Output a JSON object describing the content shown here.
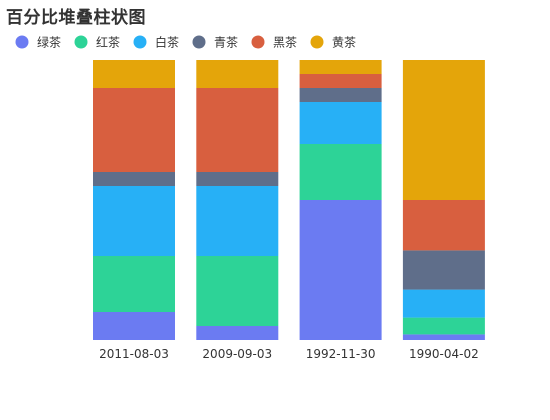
{
  "chart_data": {
    "type": "bar",
    "stacked": "percent",
    "title": "百分比堆叠柱状图",
    "categories": [
      "2011-08-03",
      "2009-09-03",
      "1992-11-30",
      "1990-04-02"
    ],
    "series": [
      {
        "name": "绿茶",
        "color": "#6b7bf2",
        "values": [
          10,
          5,
          50,
          2
        ]
      },
      {
        "name": "红茶",
        "color": "#2dd397",
        "values": [
          20,
          25,
          20,
          6
        ]
      },
      {
        "name": "白茶",
        "color": "#27b0f6",
        "values": [
          25,
          25,
          15,
          10
        ]
      },
      {
        "name": "青茶",
        "color": "#5f6e8a",
        "values": [
          5,
          5,
          5,
          14
        ]
      },
      {
        "name": "黑茶",
        "color": "#d85f3f",
        "values": [
          30,
          30,
          5,
          18
        ]
      },
      {
        "name": "黄茶",
        "color": "#e4a50a",
        "values": [
          10,
          10,
          5,
          50
        ]
      }
    ],
    "ylim": [
      0,
      100
    ],
    "legend": "top-left",
    "grid": false
  }
}
